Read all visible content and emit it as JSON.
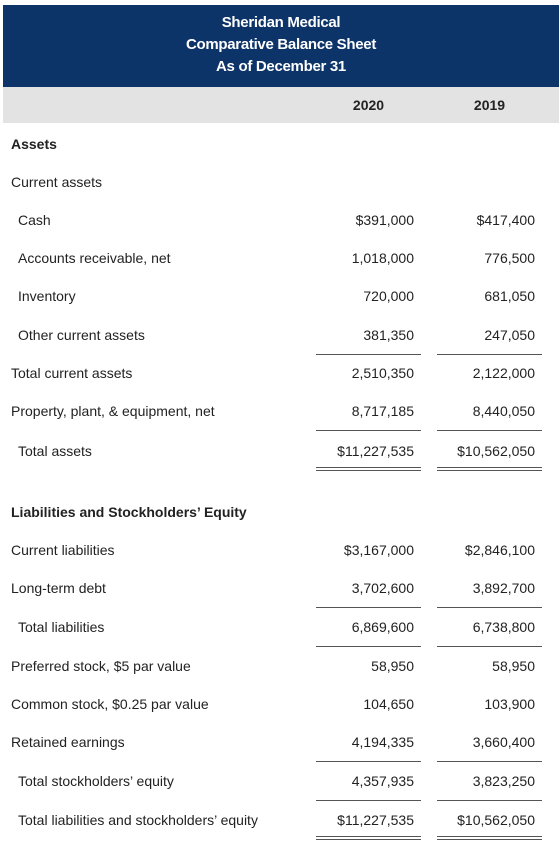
{
  "header": {
    "title_lines": [
      "Sheridan Medical",
      "Comparative Balance Sheet",
      "As of December 31"
    ]
  },
  "table": {
    "columns": [
      "2020",
      "2019"
    ],
    "rows": [
      [
        "Assets"
      ],
      [
        "Current assets"
      ],
      [
        "Cash",
        "$391,000",
        "$417,400"
      ],
      [
        "Accounts receivable, net",
        "1,018,000",
        "776,500"
      ],
      [
        "Inventory",
        "720,000",
        "681,050"
      ],
      [
        "Other current assets",
        "381,350",
        "247,050"
      ],
      [
        "Total current assets",
        "2,510,350",
        "2,122,000"
      ],
      [
        "Property, plant, & equipment, net",
        "8,717,185",
        "8,440,050"
      ],
      [
        "Total assets",
        "$11,227,535",
        "$10,562,050"
      ],
      [
        "Liabilities and Stockholders’ Equity"
      ],
      [
        "Current liabilities",
        "$3,167,000",
        "$2,846,100"
      ],
      [
        "Long-term debt",
        "3,702,600",
        "3,892,700"
      ],
      [
        "Total liabilities",
        "6,869,600",
        "6,738,800"
      ],
      [
        "Preferred stock, $5 par value",
        "58,950",
        "58,950"
      ],
      [
        "Common stock, $0.25 par value",
        "104,650",
        "103,900"
      ],
      [
        "Retained earnings",
        "4,194,335",
        "3,660,400"
      ],
      [
        "Total stockholders’ equity",
        "4,357,935",
        "3,823,250"
      ],
      [
        "Total liabilities and stockholders’ equity",
        "$11,227,535",
        "$10,562,050"
      ]
    ]
  }
}
